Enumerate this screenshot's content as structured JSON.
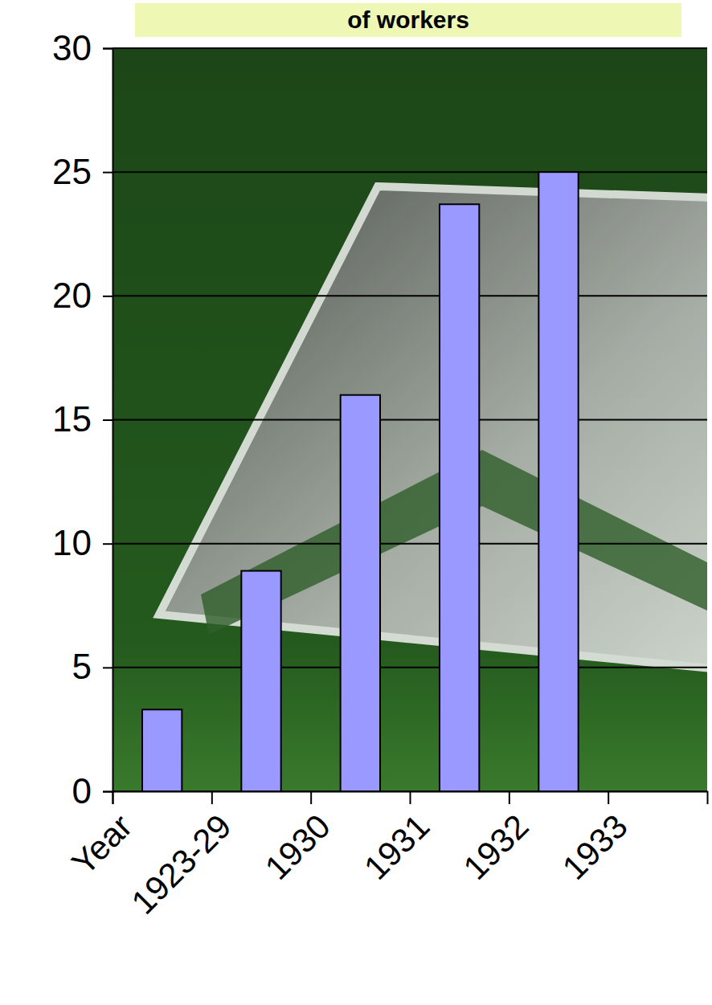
{
  "chart_data": {
    "type": "bar",
    "title": "of workers",
    "categories": [
      "Year",
      "1923-29",
      "1930",
      "1931",
      "1932",
      "1933"
    ],
    "values": [
      3.3,
      8.9,
      16,
      23.7,
      25,
      null
    ],
    "color": "#9999ff",
    "ylim": [
      0,
      30
    ],
    "yticks": [
      0,
      5,
      10,
      15,
      20,
      25,
      30
    ],
    "grid": true
  }
}
